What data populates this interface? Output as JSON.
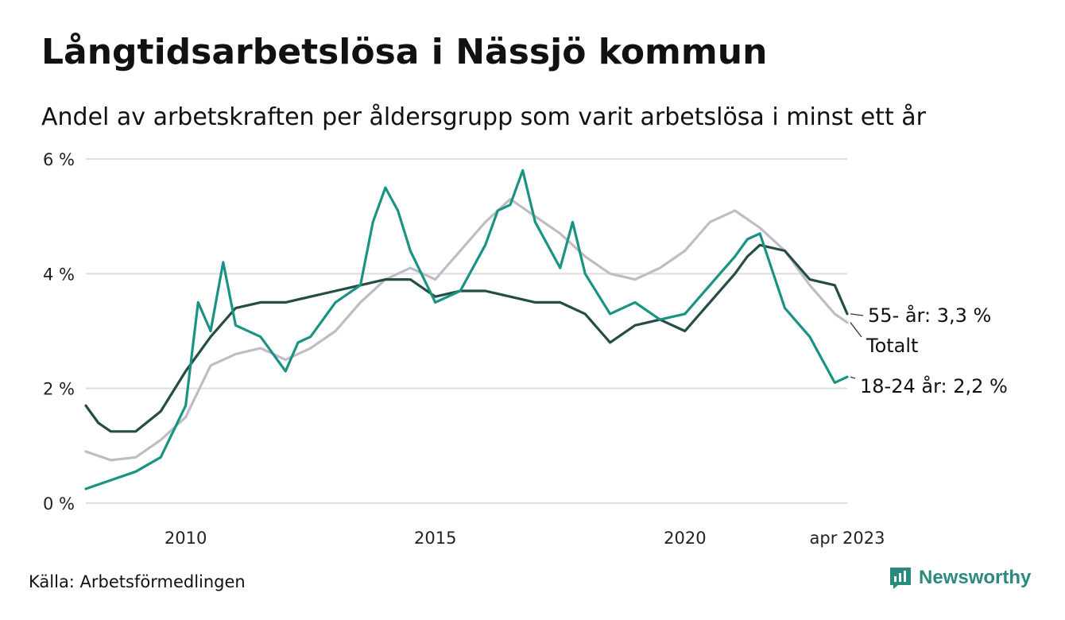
{
  "title": "Långtidsarbetslösa i Nässjö kommun",
  "subtitle": "Andel av arbetskraften per åldersgrupp som varit arbetslösa i minst ett år",
  "source": "Källa: Arbetsförmedlingen",
  "brand": "Newsworthy",
  "colors": {
    "total": "#bfbcc8",
    "age55": "#234d45",
    "age1824": "#1a9384",
    "grid": "#dddddd",
    "brand": "#2b8a7e"
  },
  "chart_data": {
    "type": "line",
    "title": "Långtidsarbetslösa i Nässjö kommun",
    "subtitle": "Andel av arbetskraften per åldersgrupp som varit arbetslösa i minst ett år",
    "x_unit": "year",
    "xlim": [
      2008.0,
      2023.25
    ],
    "ylim": [
      0,
      6
    ],
    "y_ticks": [
      {
        "value": 0,
        "label": "0 %"
      },
      {
        "value": 2,
        "label": "2 %"
      },
      {
        "value": 4,
        "label": "4 %"
      },
      {
        "value": 6,
        "label": "6 %"
      }
    ],
    "x_ticks": [
      {
        "value": 2010,
        "label": "2010"
      },
      {
        "value": 2015,
        "label": "2015"
      },
      {
        "value": 2020,
        "label": "2020"
      },
      {
        "value": 2023.25,
        "label": "apr 2023"
      }
    ],
    "grid": "horizontal",
    "legend": "direct labels at line ends",
    "series": [
      {
        "name": "Totalt",
        "label": "Totalt",
        "color_key": "total",
        "points": [
          [
            2008.0,
            0.9
          ],
          [
            2008.5,
            0.75
          ],
          [
            2009.0,
            0.8
          ],
          [
            2009.5,
            1.1
          ],
          [
            2010.0,
            1.5
          ],
          [
            2010.5,
            2.4
          ],
          [
            2011.0,
            2.6
          ],
          [
            2011.5,
            2.7
          ],
          [
            2012.0,
            2.5
          ],
          [
            2012.5,
            2.7
          ],
          [
            2013.0,
            3.0
          ],
          [
            2013.5,
            3.5
          ],
          [
            2014.0,
            3.9
          ],
          [
            2014.5,
            4.1
          ],
          [
            2015.0,
            3.9
          ],
          [
            2015.5,
            4.4
          ],
          [
            2016.0,
            4.9
          ],
          [
            2016.5,
            5.3
          ],
          [
            2017.0,
            5.0
          ],
          [
            2017.5,
            4.7
          ],
          [
            2018.0,
            4.3
          ],
          [
            2018.5,
            4.0
          ],
          [
            2019.0,
            3.9
          ],
          [
            2019.5,
            4.1
          ],
          [
            2020.0,
            4.4
          ],
          [
            2020.5,
            4.9
          ],
          [
            2021.0,
            5.1
          ],
          [
            2021.5,
            4.8
          ],
          [
            2022.0,
            4.4
          ],
          [
            2022.5,
            3.8
          ],
          [
            2023.0,
            3.3
          ],
          [
            2023.25,
            3.15
          ]
        ]
      },
      {
        "name": "55- år",
        "label": "55- år: 3,3 %",
        "color_key": "age55",
        "points": [
          [
            2008.0,
            1.7
          ],
          [
            2008.25,
            1.4
          ],
          [
            2008.5,
            1.25
          ],
          [
            2009.0,
            1.25
          ],
          [
            2009.5,
            1.6
          ],
          [
            2010.0,
            2.3
          ],
          [
            2010.5,
            2.9
          ],
          [
            2011.0,
            3.4
          ],
          [
            2011.5,
            3.5
          ],
          [
            2012.0,
            3.5
          ],
          [
            2012.5,
            3.6
          ],
          [
            2013.0,
            3.7
          ],
          [
            2013.5,
            3.8
          ],
          [
            2014.0,
            3.9
          ],
          [
            2014.5,
            3.9
          ],
          [
            2015.0,
            3.6
          ],
          [
            2015.5,
            3.7
          ],
          [
            2016.0,
            3.7
          ],
          [
            2016.5,
            3.6
          ],
          [
            2017.0,
            3.5
          ],
          [
            2017.5,
            3.5
          ],
          [
            2018.0,
            3.3
          ],
          [
            2018.5,
            2.8
          ],
          [
            2019.0,
            3.1
          ],
          [
            2019.5,
            3.2
          ],
          [
            2020.0,
            3.0
          ],
          [
            2020.5,
            3.5
          ],
          [
            2021.0,
            4.0
          ],
          [
            2021.25,
            4.3
          ],
          [
            2021.5,
            4.5
          ],
          [
            2022.0,
            4.4
          ],
          [
            2022.5,
            3.9
          ],
          [
            2023.0,
            3.8
          ],
          [
            2023.25,
            3.3
          ]
        ]
      },
      {
        "name": "18-24 år",
        "label": "18-24 år: 2,2 %",
        "color_key": "age1824",
        "points": [
          [
            2008.0,
            0.25
          ],
          [
            2008.5,
            0.4
          ],
          [
            2009.0,
            0.55
          ],
          [
            2009.5,
            0.8
          ],
          [
            2010.0,
            1.7
          ],
          [
            2010.25,
            3.5
          ],
          [
            2010.5,
            3.0
          ],
          [
            2010.75,
            4.2
          ],
          [
            2011.0,
            3.1
          ],
          [
            2011.5,
            2.9
          ],
          [
            2012.0,
            2.3
          ],
          [
            2012.25,
            2.8
          ],
          [
            2012.5,
            2.9
          ],
          [
            2013.0,
            3.5
          ],
          [
            2013.5,
            3.8
          ],
          [
            2013.75,
            4.9
          ],
          [
            2014.0,
            5.5
          ],
          [
            2014.25,
            5.1
          ],
          [
            2014.5,
            4.4
          ],
          [
            2015.0,
            3.5
          ],
          [
            2015.5,
            3.7
          ],
          [
            2016.0,
            4.5
          ],
          [
            2016.25,
            5.1
          ],
          [
            2016.5,
            5.2
          ],
          [
            2016.75,
            5.8
          ],
          [
            2017.0,
            4.9
          ],
          [
            2017.5,
            4.1
          ],
          [
            2017.75,
            4.9
          ],
          [
            2018.0,
            4.0
          ],
          [
            2018.5,
            3.3
          ],
          [
            2019.0,
            3.5
          ],
          [
            2019.5,
            3.2
          ],
          [
            2020.0,
            3.3
          ],
          [
            2020.5,
            3.8
          ],
          [
            2021.0,
            4.3
          ],
          [
            2021.25,
            4.6
          ],
          [
            2021.5,
            4.7
          ],
          [
            2022.0,
            3.4
          ],
          [
            2022.5,
            2.9
          ],
          [
            2022.75,
            2.5
          ],
          [
            2023.0,
            2.1
          ],
          [
            2023.25,
            2.2
          ]
        ]
      }
    ]
  }
}
